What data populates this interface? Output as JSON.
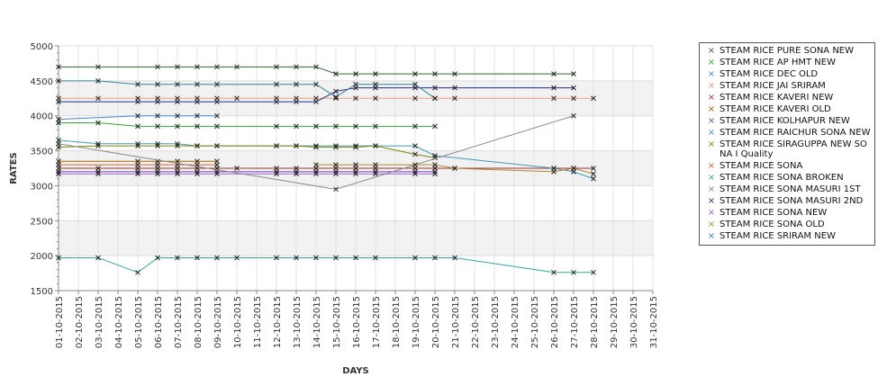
{
  "chart_data": {
    "type": "line",
    "title": "",
    "xlabel": "DAYS",
    "ylabel": "RATES",
    "ylim": [
      1500,
      5000
    ],
    "y_ticks": [
      1500,
      2000,
      2500,
      3000,
      3500,
      4000,
      4500,
      5000
    ],
    "categories": [
      "01-10-2015",
      "02-10-2015",
      "03-10-2015",
      "04-10-2015",
      "05-10-2015",
      "06-10-2015",
      "07-10-2015",
      "08-10-2015",
      "09-10-2015",
      "10-10-2015",
      "11-10-2015",
      "12-10-2015",
      "13-10-2015",
      "14-10-2015",
      "15-10-2015",
      "16-10-2015",
      "17-10-2015",
      "18-10-2015",
      "19-10-2015",
      "20-10-2015",
      "21-10-2015",
      "22-10-2015",
      "23-10-2015",
      "24-10-2015",
      "25-10-2015",
      "26-10-2015",
      "27-10-2015",
      "28-10-2015",
      "29-10-2015",
      "30-10-2015",
      "31-10-2015"
    ],
    "grid": true,
    "legend_position": "right",
    "series": [
      {
        "name": " STEAM RICE PURE SONA NEW",
        "color": "#336633",
        "points": [
          [
            "01-10-2015",
            4700
          ],
          [
            "03-10-2015",
            4700
          ],
          [
            "06-10-2015",
            4700
          ],
          [
            "07-10-2015",
            4700
          ],
          [
            "08-10-2015",
            4700
          ],
          [
            "09-10-2015",
            4700
          ],
          [
            "10-10-2015",
            4700
          ],
          [
            "12-10-2015",
            4700
          ],
          [
            "13-10-2015",
            4700
          ],
          [
            "14-10-2015",
            4700
          ],
          [
            "15-10-2015",
            4600
          ],
          [
            "16-10-2015",
            4600
          ],
          [
            "17-10-2015",
            4600
          ],
          [
            "19-10-2015",
            4600
          ],
          [
            "20-10-2015",
            4600
          ],
          [
            "21-10-2015",
            4600
          ],
          [
            "26-10-2015",
            4600
          ],
          [
            "27-10-2015",
            4600
          ]
        ]
      },
      {
        "name": "STEAM RICE AP HMT NEW",
        "color": "#33aa33",
        "points": [
          [
            "01-10-2015",
            3900
          ],
          [
            "03-10-2015",
            3900
          ],
          [
            "05-10-2015",
            3850
          ],
          [
            "06-10-2015",
            3850
          ],
          [
            "07-10-2015",
            3850
          ],
          [
            "08-10-2015",
            3850
          ],
          [
            "09-10-2015",
            3850
          ],
          [
            "12-10-2015",
            3850
          ],
          [
            "13-10-2015",
            3850
          ],
          [
            "14-10-2015",
            3850
          ],
          [
            "15-10-2015",
            3850
          ],
          [
            "16-10-2015",
            3850
          ],
          [
            "17-10-2015",
            3850
          ],
          [
            "19-10-2015",
            3850
          ],
          [
            "20-10-2015",
            3850
          ]
        ]
      },
      {
        "name": "STEAM RICE DEC OLD",
        "color": "#4488cc",
        "points": [
          [
            "01-10-2015",
            3950
          ],
          [
            "05-10-2015",
            4000
          ],
          [
            "06-10-2015",
            4000
          ],
          [
            "07-10-2015",
            4000
          ],
          [
            "08-10-2015",
            4000
          ],
          [
            "09-10-2015",
            4000
          ]
        ]
      },
      {
        "name": "STEAM RICE JAI SRIRAM",
        "color": "#e89a80",
        "points": [
          [
            "01-10-2015",
            4250
          ],
          [
            "03-10-2015",
            4250
          ],
          [
            "05-10-2015",
            4250
          ],
          [
            "06-10-2015",
            4250
          ],
          [
            "07-10-2015",
            4250
          ],
          [
            "08-10-2015",
            4250
          ],
          [
            "09-10-2015",
            4250
          ],
          [
            "10-10-2015",
            4250
          ],
          [
            "12-10-2015",
            4250
          ],
          [
            "13-10-2015",
            4250
          ],
          [
            "14-10-2015",
            4250
          ],
          [
            "15-10-2015",
            4250
          ],
          [
            "16-10-2015",
            4250
          ],
          [
            "17-10-2015",
            4250
          ],
          [
            "19-10-2015",
            4250
          ],
          [
            "20-10-2015",
            4250
          ],
          [
            "21-10-2015",
            4250
          ],
          [
            "26-10-2015",
            4250
          ],
          [
            "27-10-2015",
            4250
          ],
          [
            "28-10-2015",
            4250
          ]
        ]
      },
      {
        "name": "STEAM RICE KAVERI NEW",
        "color": "#993333",
        "points": [
          [
            "01-10-2015",
            3250
          ],
          [
            "03-10-2015",
            3250
          ],
          [
            "05-10-2015",
            3250
          ],
          [
            "06-10-2015",
            3250
          ],
          [
            "07-10-2015",
            3250
          ],
          [
            "08-10-2015",
            3250
          ],
          [
            "09-10-2015",
            3250
          ],
          [
            "10-10-2015",
            3250
          ],
          [
            "12-10-2015",
            3250
          ],
          [
            "13-10-2015",
            3250
          ],
          [
            "14-10-2015",
            3250
          ],
          [
            "15-10-2015",
            3250
          ],
          [
            "16-10-2015",
            3250
          ],
          [
            "17-10-2015",
            3250
          ],
          [
            "19-10-2015",
            3250
          ],
          [
            "20-10-2015",
            3250
          ],
          [
            "21-10-2015",
            3250
          ],
          [
            "26-10-2015",
            3250
          ],
          [
            "27-10-2015",
            3250
          ],
          [
            "28-10-2015",
            3250
          ]
        ]
      },
      {
        "name": "STEAM RICE KAVERI OLD",
        "color": "#996600",
        "points": [
          [
            "01-10-2015",
            3350
          ],
          [
            "05-10-2015",
            3350
          ],
          [
            "06-10-2015",
            3350
          ],
          [
            "07-10-2015",
            3350
          ],
          [
            "08-10-2015",
            3350
          ],
          [
            "09-10-2015",
            3350
          ]
        ]
      },
      {
        "name": "STEAM RICE KOLHAPUR NEW",
        "color": "#7744aa",
        "points": [
          [
            "01-10-2015",
            3200
          ],
          [
            "03-10-2015",
            3200
          ],
          [
            "05-10-2015",
            3200
          ],
          [
            "06-10-2015",
            3200
          ],
          [
            "07-10-2015",
            3200
          ],
          [
            "08-10-2015",
            3200
          ],
          [
            "09-10-2015",
            3200
          ],
          [
            "12-10-2015",
            3200
          ],
          [
            "13-10-2015",
            3200
          ],
          [
            "14-10-2015",
            3200
          ],
          [
            "15-10-2015",
            3200
          ],
          [
            "16-10-2015",
            3200
          ],
          [
            "17-10-2015",
            3200
          ],
          [
            "19-10-2015",
            3200
          ],
          [
            "20-10-2015",
            3200
          ]
        ]
      },
      {
        "name": "STEAM RICE RAICHUR SONA NEW",
        "color": "#4499bb",
        "points": [
          [
            "01-10-2015",
            3650
          ],
          [
            "03-10-2015",
            3600
          ],
          [
            "05-10-2015",
            3600
          ],
          [
            "06-10-2015",
            3600
          ],
          [
            "07-10-2015",
            3600
          ],
          [
            "08-10-2015",
            3570
          ],
          [
            "09-10-2015",
            3570
          ],
          [
            "12-10-2015",
            3570
          ],
          [
            "13-10-2015",
            3570
          ],
          [
            "14-10-2015",
            3570
          ],
          [
            "15-10-2015",
            3570
          ],
          [
            "16-10-2015",
            3570
          ],
          [
            "17-10-2015",
            3570
          ],
          [
            "19-10-2015",
            3570
          ],
          [
            "20-10-2015",
            3430
          ],
          [
            "26-10-2015",
            3250
          ],
          [
            "27-10-2015",
            3200
          ],
          [
            "28-10-2015",
            3100
          ]
        ]
      },
      {
        "name": "STEAM RICE SIRAGUPPA NEW SONA I Quality",
        "color": "#778800",
        "points": [
          [
            "01-10-2015",
            3550
          ],
          [
            "03-10-2015",
            3570
          ],
          [
            "05-10-2015",
            3570
          ],
          [
            "06-10-2015",
            3570
          ],
          [
            "07-10-2015",
            3570
          ],
          [
            "08-10-2015",
            3570
          ],
          [
            "09-10-2015",
            3570
          ],
          [
            "12-10-2015",
            3570
          ],
          [
            "13-10-2015",
            3570
          ],
          [
            "14-10-2015",
            3550
          ],
          [
            "15-10-2015",
            3550
          ],
          [
            "16-10-2015",
            3550
          ],
          [
            "17-10-2015",
            3570
          ],
          [
            "19-10-2015",
            3450
          ],
          [
            "20-10-2015",
            3400
          ]
        ]
      },
      {
        "name": "STEAM RICE SONA",
        "color": "#cc6633",
        "points": [
          [
            "01-10-2015",
            3300
          ],
          [
            "05-10-2015",
            3300
          ],
          [
            "06-10-2015",
            3300
          ],
          [
            "07-10-2015",
            3300
          ],
          [
            "08-10-2015",
            3300
          ],
          [
            "09-10-2015",
            3300
          ]
        ]
      },
      {
        "name": "STEAM RICE SONA BROKEN",
        "color": "#33aa99",
        "points": [
          [
            "01-10-2015",
            1970
          ],
          [
            "03-10-2015",
            1970
          ],
          [
            "05-10-2015",
            1760
          ],
          [
            "06-10-2015",
            1970
          ],
          [
            "07-10-2015",
            1970
          ],
          [
            "08-10-2015",
            1970
          ],
          [
            "09-10-2015",
            1970
          ],
          [
            "10-10-2015",
            1970
          ],
          [
            "12-10-2015",
            1970
          ],
          [
            "13-10-2015",
            1970
          ],
          [
            "14-10-2015",
            1970
          ],
          [
            "15-10-2015",
            1970
          ],
          [
            "16-10-2015",
            1970
          ],
          [
            "17-10-2015",
            1970
          ],
          [
            "19-10-2015",
            1970
          ],
          [
            "20-10-2015",
            1970
          ],
          [
            "21-10-2015",
            1970
          ],
          [
            "26-10-2015",
            1760
          ],
          [
            "27-10-2015",
            1760
          ],
          [
            "28-10-2015",
            1760
          ]
        ]
      },
      {
        "name": "STEAM RICE SONA MASURI 1ST",
        "color": "#888888",
        "points": [
          [
            "01-10-2015",
            3600
          ],
          [
            "15-10-2015",
            2950
          ],
          [
            "27-10-2015",
            4000
          ]
        ]
      },
      {
        "name": "STEAM RICE SONA MASURI 2ND",
        "color": "#223388",
        "points": [
          [
            "01-10-2015",
            4200
          ],
          [
            "05-10-2015",
            4200
          ],
          [
            "06-10-2015",
            4200
          ],
          [
            "07-10-2015",
            4200
          ],
          [
            "08-10-2015",
            4200
          ],
          [
            "09-10-2015",
            4200
          ],
          [
            "12-10-2015",
            4200
          ],
          [
            "13-10-2015",
            4200
          ],
          [
            "14-10-2015",
            4200
          ],
          [
            "15-10-2015",
            4350
          ],
          [
            "16-10-2015",
            4400
          ],
          [
            "17-10-2015",
            4400
          ],
          [
            "19-10-2015",
            4400
          ],
          [
            "20-10-2015",
            4400
          ],
          [
            "21-10-2015",
            4400
          ],
          [
            "26-10-2015",
            4400
          ],
          [
            "27-10-2015",
            4400
          ]
        ]
      },
      {
        "name": "STEAM RICE SONA NEW",
        "color": "#9966cc",
        "points": [
          [
            "01-10-2015",
            3170
          ],
          [
            "03-10-2015",
            3170
          ],
          [
            "05-10-2015",
            3170
          ],
          [
            "06-10-2015",
            3170
          ],
          [
            "07-10-2015",
            3170
          ],
          [
            "08-10-2015",
            3170
          ],
          [
            "09-10-2015",
            3170
          ],
          [
            "12-10-2015",
            3170
          ],
          [
            "13-10-2015",
            3170
          ],
          [
            "14-10-2015",
            3170
          ],
          [
            "15-10-2015",
            3170
          ],
          [
            "16-10-2015",
            3170
          ],
          [
            "17-10-2015",
            3170
          ],
          [
            "19-10-2015",
            3170
          ],
          [
            "20-10-2015",
            3170
          ]
        ]
      },
      {
        "name": "STEAM RICE SONA OLD",
        "color": "#aa8833",
        "points": [
          [
            "14-10-2015",
            3300
          ],
          [
            "15-10-2015",
            3300
          ],
          [
            "16-10-2015",
            3300
          ],
          [
            "17-10-2015",
            3300
          ],
          [
            "19-10-2015",
            3300
          ],
          [
            "20-10-2015",
            3300
          ],
          [
            "21-10-2015",
            3250
          ],
          [
            "26-10-2015",
            3200
          ],
          [
            "27-10-2015",
            3250
          ],
          [
            "28-10-2015",
            3170
          ]
        ]
      },
      {
        "name": "STEAM RICE SRIRAM NEW",
        "color": "#338899",
        "points": [
          [
            "01-10-2015",
            4500
          ],
          [
            "03-10-2015",
            4500
          ],
          [
            "05-10-2015",
            4450
          ],
          [
            "06-10-2015",
            4450
          ],
          [
            "07-10-2015",
            4450
          ],
          [
            "08-10-2015",
            4450
          ],
          [
            "09-10-2015",
            4450
          ],
          [
            "12-10-2015",
            4450
          ],
          [
            "13-10-2015",
            4450
          ],
          [
            "14-10-2015",
            4450
          ],
          [
            "15-10-2015",
            4270
          ],
          [
            "16-10-2015",
            4450
          ],
          [
            "17-10-2015",
            4450
          ],
          [
            "19-10-2015",
            4450
          ],
          [
            "20-10-2015",
            4250
          ]
        ]
      }
    ]
  }
}
